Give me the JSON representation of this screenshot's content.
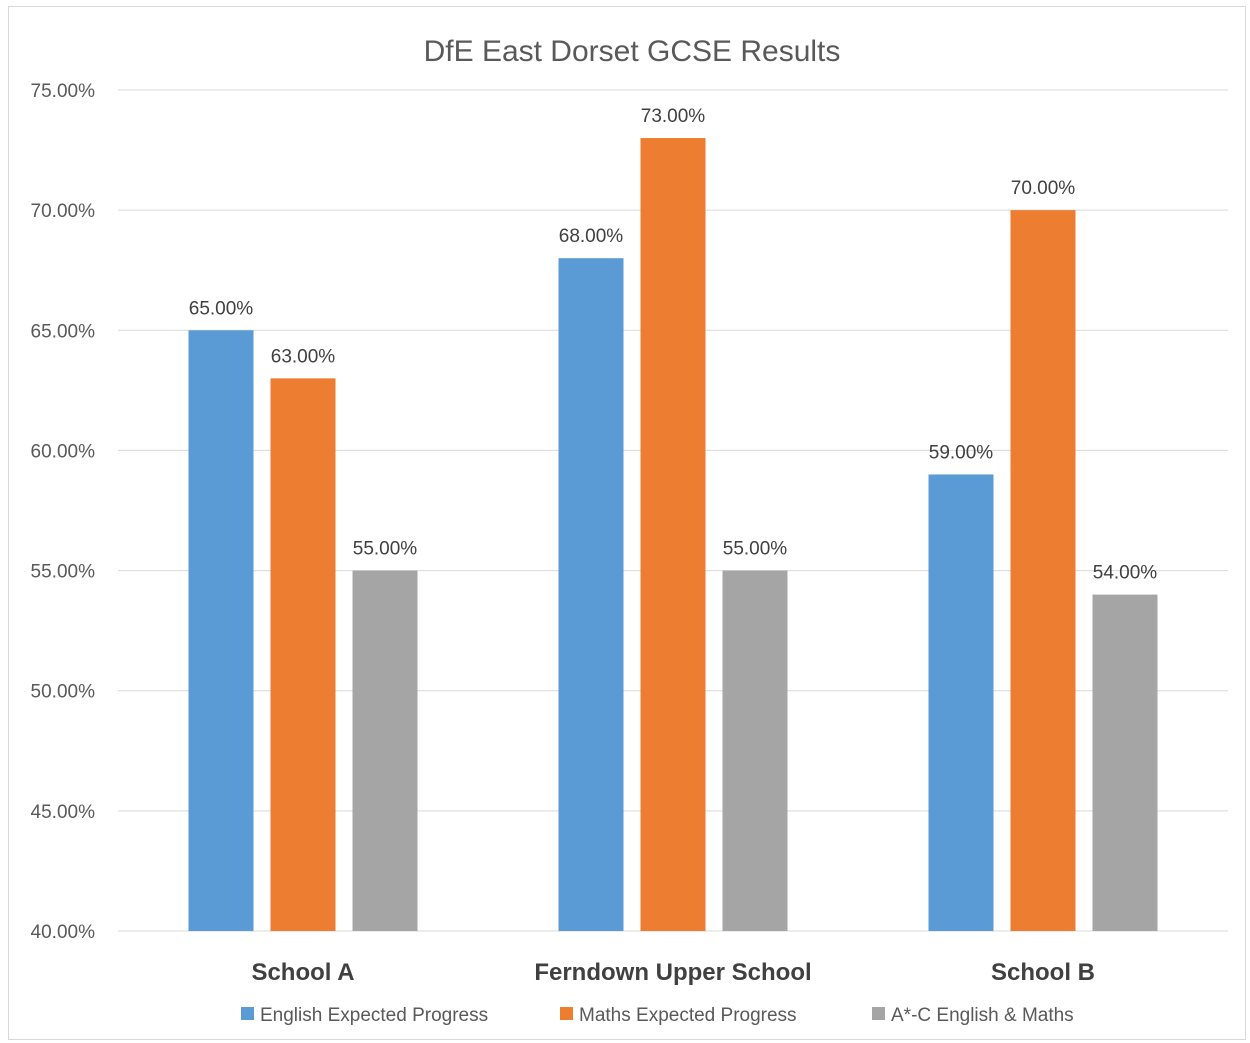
{
  "chart_data": {
    "type": "bar",
    "title": "DfE East Dorset GCSE Results",
    "categories": [
      "School A",
      "Ferndown Upper School",
      "School B"
    ],
    "series": [
      {
        "name": "English Expected Progress",
        "color": "#5b9bd5",
        "values": [
          65.0,
          68.0,
          59.0
        ],
        "labels": [
          "65.00%",
          "68.00%",
          "59.00%"
        ]
      },
      {
        "name": "Maths Expected Progress",
        "color": "#ed7d31",
        "values": [
          63.0,
          73.0,
          70.0
        ],
        "labels": [
          "63.00%",
          "73.00%",
          "70.00%"
        ]
      },
      {
        "name": "A*-C English & Maths",
        "color": "#a5a5a5",
        "values": [
          55.0,
          55.0,
          54.0
        ],
        "labels": [
          "55.00%",
          "55.00%",
          "54.00%"
        ]
      }
    ],
    "ylim": [
      40,
      75
    ],
    "yticks": [
      "40.00%",
      "45.00%",
      "50.00%",
      "55.00%",
      "60.00%",
      "65.00%",
      "70.00%",
      "75.00%"
    ],
    "ytick_values": [
      40,
      45,
      50,
      55,
      60,
      65,
      70,
      75
    ],
    "xlabel": "",
    "ylabel": "",
    "grid": true,
    "legend": "bottom"
  }
}
